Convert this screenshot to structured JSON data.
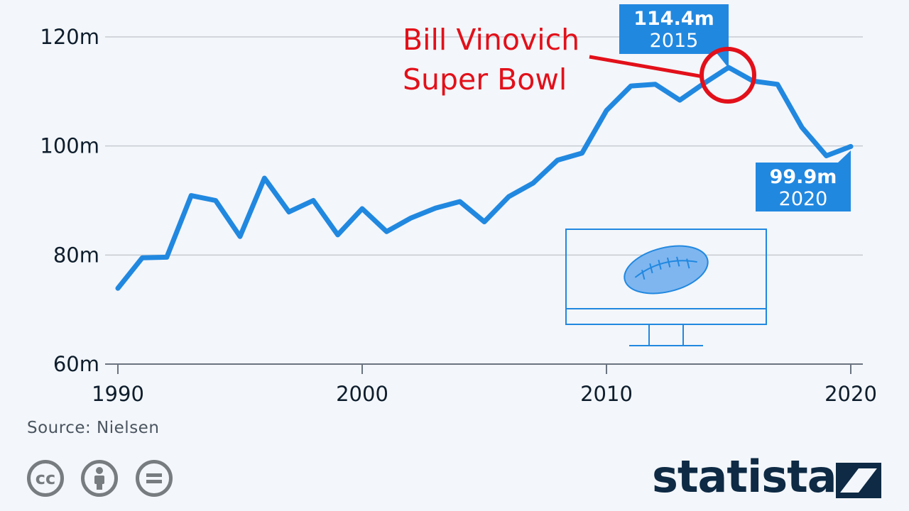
{
  "chart_data": {
    "type": "line",
    "x": [
      1990,
      1991,
      1992,
      1993,
      1994,
      1995,
      1996,
      1997,
      1998,
      1999,
      2000,
      2001,
      2002,
      2003,
      2004,
      2005,
      2006,
      2007,
      2008,
      2009,
      2010,
      2011,
      2012,
      2013,
      2014,
      2015,
      2016,
      2017,
      2018,
      2019,
      2020
    ],
    "series": [
      {
        "values": [
          73.9,
          79.5,
          79.6,
          90.9,
          90.0,
          83.4,
          94.1,
          87.9,
          90.0,
          83.7,
          88.5,
          84.3,
          86.8,
          88.6,
          89.8,
          86.1,
          90.7,
          93.2,
          97.4,
          98.7,
          106.5,
          111.0,
          111.3,
          108.4,
          111.5,
          114.4,
          111.9,
          111.3,
          103.4,
          98.2,
          99.9
        ]
      }
    ],
    "xticks": [
      "1990",
      "2000",
      "2010",
      "2020"
    ],
    "yticks": [
      "60m",
      "80m",
      "100m",
      "120m"
    ],
    "xlim": [
      1990,
      2020
    ],
    "ylim": [
      60,
      120
    ],
    "grid": true,
    "line_color": "#2188e0",
    "callouts": [
      {
        "value": "114.4m",
        "year": "2015"
      },
      {
        "value": "99.9m",
        "year": "2020"
      }
    ],
    "annotation": [
      "Bill Vinovich",
      "Super Bowl"
    ],
    "annotation_color": "#e2101a",
    "source": "Source: Nielsen"
  },
  "footer": {
    "license_icons": [
      "cc-icon",
      "attribution-icon",
      "no-derivatives-icon"
    ],
    "cc_text": "cc",
    "brand": "statista"
  }
}
